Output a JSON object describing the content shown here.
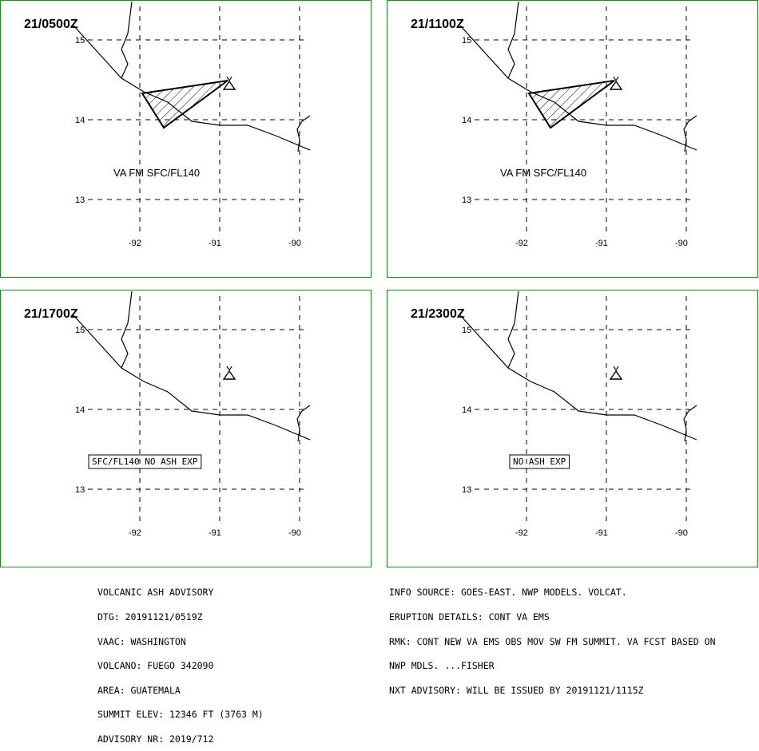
{
  "colors": {
    "frame": "#1a8a1a",
    "line": "#000000",
    "background": "#ffffff"
  },
  "axes": {
    "lat_labels": [
      "15",
      "14",
      "13"
    ],
    "lon_labels": [
      "-92",
      "-91",
      "-90"
    ]
  },
  "panels": [
    {
      "time": "21/0500Z",
      "ash_polygon": true,
      "label": "VA FM SFC/FL140",
      "label_boxed": false
    },
    {
      "time": "21/1100Z",
      "ash_polygon": true,
      "label": "VA FM SFC/FL140",
      "label_boxed": false
    },
    {
      "time": "21/1700Z",
      "ash_polygon": false,
      "label": "SFC/FL140 NO ASH EXP",
      "label_boxed": true
    },
    {
      "time": "21/2300Z",
      "ash_polygon": false,
      "label": "NO ASH EXP",
      "label_boxed": true
    }
  ],
  "footer_left": [
    "VOLCANIC ASH ADVISORY",
    "DTG: 20191121/0519Z",
    "VAAC: WASHINGTON",
    "VOLCANO: FUEGO 342090",
    "AREA: GUATEMALA",
    "SUMMIT ELEV: 12346 FT (3763 M)",
    "ADVISORY NR: 2019/712"
  ],
  "footer_right": [
    "INFO SOURCE: GOES-EAST. NWP MODELS. VOLCAT.",
    "ERUPTION DETAILS: CONT VA EMS",
    "RMK: CONT NEW VA EMS OBS MOV SW FM SUMMIT. VA FCST BASED ON",
    "NWP MDLS. ...FISHER",
    "NXT ADVISORY: WILL BE ISSUED BY 20191121/1115Z"
  ]
}
